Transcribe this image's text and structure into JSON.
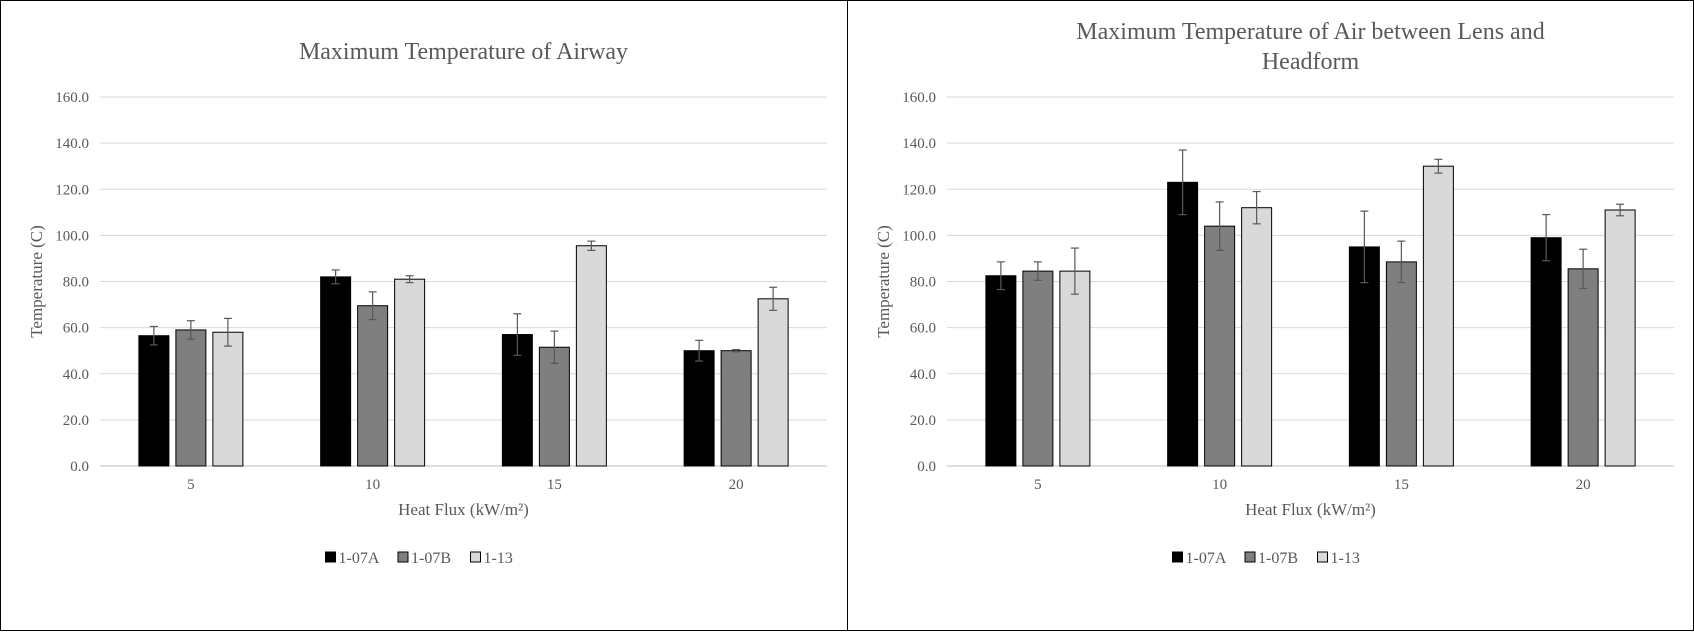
{
  "chart_data": [
    {
      "type": "bar",
      "title": [
        "Maximum Temperature of Airway"
      ],
      "xlabel": "Heat Flux (kW/m²)",
      "ylabel": "Temperature (C)",
      "categories": [
        "5",
        "10",
        "15",
        "20"
      ],
      "ylim": [
        0,
        160
      ],
      "yticks": [
        "0.0",
        "20.0",
        "40.0",
        "60.0",
        "80.0",
        "100.0",
        "120.0",
        "140.0",
        "160.0"
      ],
      "grid": true,
      "legend_position": "bottom",
      "series": [
        {
          "name": "1-07A",
          "color": "#000000",
          "values": [
            56.5,
            82.0,
            57.0,
            50.0
          ],
          "errors": [
            4.0,
            3.0,
            9.0,
            4.5
          ]
        },
        {
          "name": "1-07B",
          "color": "#7f7f7f",
          "values": [
            59.0,
            69.5,
            51.5,
            50.0
          ],
          "errors": [
            4.0,
            6.0,
            7.0,
            0.5
          ]
        },
        {
          "name": "1-13",
          "color": "#d9d9d9",
          "values": [
            58.0,
            81.0,
            95.5,
            72.5
          ],
          "errors": [
            6.0,
            1.5,
            2.0,
            5.0
          ]
        }
      ]
    },
    {
      "type": "bar",
      "title": [
        "Maximum Temperature of Air between Lens and",
        "Headform"
      ],
      "xlabel": "Heat Flux (kW/m²)",
      "ylabel": "Temperature (C)",
      "categories": [
        "5",
        "10",
        "15",
        "20"
      ],
      "ylim": [
        0,
        160
      ],
      "yticks": [
        "0.0",
        "20.0",
        "40.0",
        "60.0",
        "80.0",
        "100.0",
        "120.0",
        "140.0",
        "160.0"
      ],
      "grid": true,
      "legend_position": "bottom",
      "series": [
        {
          "name": "1-07A",
          "color": "#000000",
          "values": [
            82.5,
            123.0,
            95.0,
            99.0
          ],
          "errors": [
            6.0,
            14.0,
            15.5,
            10.0
          ]
        },
        {
          "name": "1-07B",
          "color": "#7f7f7f",
          "values": [
            84.5,
            104.0,
            88.5,
            85.5
          ],
          "errors": [
            4.0,
            10.5,
            9.0,
            8.5
          ]
        },
        {
          "name": "1-13",
          "color": "#d9d9d9",
          "values": [
            84.5,
            112.0,
            130.0,
            111.0
          ],
          "errors": [
            10.0,
            7.0,
            3.0,
            2.5
          ]
        }
      ]
    }
  ]
}
